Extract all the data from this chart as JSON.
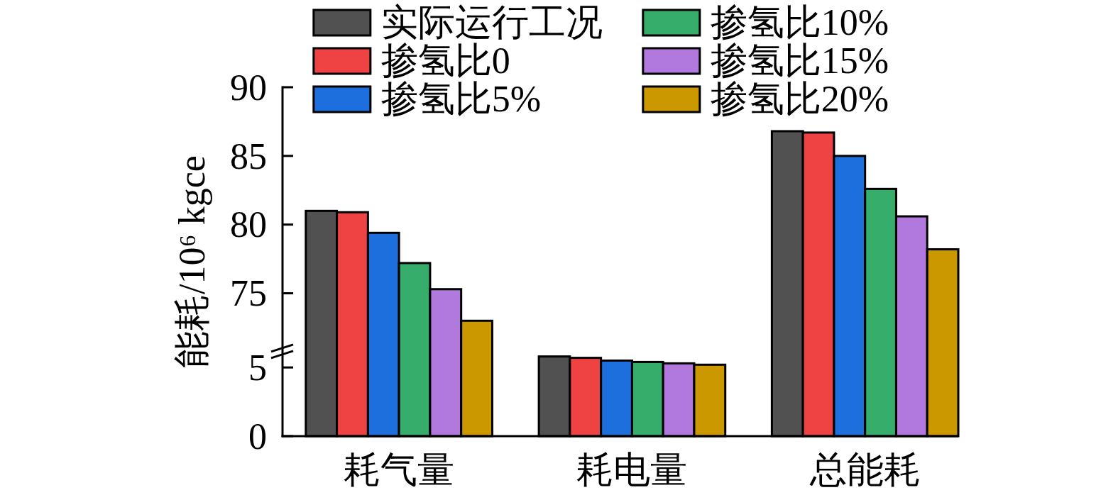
{
  "chart_data": [
    {
      "type": "bar",
      "ylabel": "能耗/10⁶ kgce",
      "categories": [
        "耗气量",
        null,
        "总能耗"
      ],
      "series": [
        {
          "name": "实际运行工况",
          "color": "#515151",
          "values": [
            81.0,
            null,
            86.8
          ]
        },
        {
          "name": "掺氢比0",
          "color": "#ef4343",
          "values": [
            80.9,
            null,
            86.7
          ]
        },
        {
          "name": "掺氢比5%",
          "color": "#1c6fdd",
          "values": [
            79.4,
            null,
            85.0
          ]
        },
        {
          "name": "掺氢比10%",
          "color": "#37ad6c",
          "values": [
            77.2,
            null,
            82.6
          ]
        },
        {
          "name": "掺氢比15%",
          "color": "#b179de",
          "values": [
            75.3,
            null,
            80.6
          ]
        },
        {
          "name": "掺氢比20%",
          "color": "#cb9800",
          "values": [
            73.0,
            null,
            78.2
          ]
        }
      ],
      "ylim": [
        70.8,
        90
      ],
      "yticks": [
        75,
        80,
        85,
        90
      ],
      "legend": "top"
    },
    {
      "type": "bar",
      "categories": [
        null,
        "耗电量",
        null
      ],
      "series": [
        {
          "color": "#515151",
          "values": [
            null,
            5.8,
            null
          ]
        },
        {
          "color": "#ef4343",
          "values": [
            null,
            5.7,
            null
          ]
        },
        {
          "color": "#1c6fdd",
          "values": [
            null,
            5.5,
            null
          ]
        },
        {
          "color": "#37ad6c",
          "values": [
            null,
            5.4,
            null
          ]
        },
        {
          "color": "#b179de",
          "values": [
            null,
            5.3,
            null
          ]
        },
        {
          "color": "#cb9800",
          "values": [
            null,
            5.2,
            null
          ]
        }
      ],
      "ylim": [
        0,
        6.2
      ],
      "yticks": [
        0,
        5
      ]
    }
  ]
}
